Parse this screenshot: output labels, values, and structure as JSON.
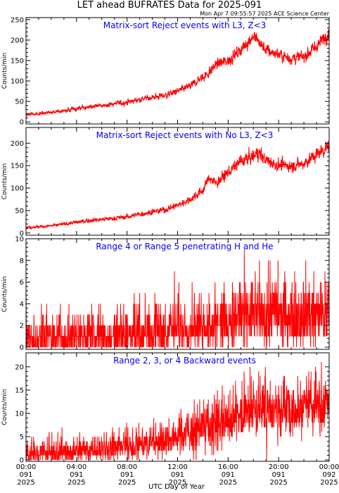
{
  "header": {
    "title": "LET ahead BUFRATES Data for 2025-091",
    "stamp": "Mon Apr  7 09:55:57 2025 ACE Science Center"
  },
  "x_axis": {
    "label": "UTC Day of Year",
    "ticks": [
      {
        "time": "00:00",
        "day": "091",
        "year": "2025"
      },
      {
        "time": "04:00",
        "day": "091",
        "year": "2025"
      },
      {
        "time": "08:00",
        "day": "091",
        "year": "2025"
      },
      {
        "time": "12:00",
        "day": "091",
        "year": "2025"
      },
      {
        "time": "16:00",
        "day": "091",
        "year": "2025"
      },
      {
        "time": "20:00",
        "day": "091",
        "year": "2025"
      },
      {
        "time": "00:00",
        "day": "092",
        "year": "2025"
      }
    ]
  },
  "colors": {
    "trace": "#ff0000",
    "title": "#0000ff",
    "axis": "#000000"
  },
  "chart_data": [
    {
      "type": "line",
      "title": "Matrix-sort Reject events with L3, Z<3",
      "ylabel": "Counts/min",
      "xlim": [
        0,
        24
      ],
      "ylim": [
        -5,
        255
      ],
      "yticks": [
        0,
        50,
        100,
        150,
        200,
        250
      ],
      "x": [
        0,
        1,
        2,
        3,
        4,
        5,
        6,
        7,
        8,
        9,
        10,
        11,
        12,
        13,
        14,
        14.5,
        15,
        16,
        17,
        17.5,
        18,
        18.3,
        19,
        20,
        21,
        22,
        23,
        24
      ],
      "y": [
        18,
        20,
        23,
        27,
        32,
        37,
        40,
        44,
        48,
        55,
        60,
        65,
        75,
        88,
        110,
        120,
        140,
        150,
        175,
        195,
        210,
        200,
        175,
        165,
        155,
        160,
        185,
        220
      ]
    },
    {
      "type": "line",
      "title": "Matrix-sort Reject events with No L3, Z<3",
      "ylabel": "Counts/min",
      "xlim": [
        0,
        24
      ],
      "ylim": [
        -5,
        235
      ],
      "yticks": [
        0,
        50,
        100,
        150,
        200
      ],
      "x": [
        0,
        1,
        2,
        3,
        4,
        5,
        6,
        7,
        8,
        9,
        10,
        11,
        12,
        13,
        14,
        14.5,
        15,
        16,
        17,
        17.5,
        18,
        18.3,
        19,
        20,
        21,
        22,
        23,
        24
      ],
      "y": [
        12,
        14,
        16,
        20,
        24,
        28,
        30,
        33,
        36,
        42,
        47,
        52,
        62,
        75,
        95,
        125,
        110,
        135,
        160,
        165,
        170,
        180,
        162,
        150,
        150,
        155,
        175,
        195
      ]
    },
    {
      "type": "line",
      "title": "Range 4 or Range 5 penetrating H and He",
      "ylabel": "Counts/min",
      "xlim": [
        0,
        24
      ],
      "ylim": [
        -0.2,
        10
      ],
      "yticks": [
        0,
        2,
        4,
        6,
        8,
        10
      ],
      "x": [
        0,
        4,
        8,
        12,
        16,
        20,
        24
      ],
      "y": [
        1.0,
        1.1,
        1.4,
        1.8,
        2.5,
        3.0,
        3.3
      ]
    },
    {
      "type": "line",
      "title": "Range 2, 3, or 4 Backward events",
      "ylabel": "Counts/min",
      "xlim": [
        0,
        24
      ],
      "ylim": [
        -0.3,
        23
      ],
      "yticks": [
        0,
        5,
        10,
        15,
        20
      ],
      "x": [
        0,
        4,
        8,
        12,
        14,
        16,
        18,
        20,
        22,
        24
      ],
      "y": [
        1.5,
        2.0,
        3.0,
        5.0,
        7.0,
        9.0,
        11.0,
        11.5,
        11.0,
        13.0
      ]
    }
  ]
}
